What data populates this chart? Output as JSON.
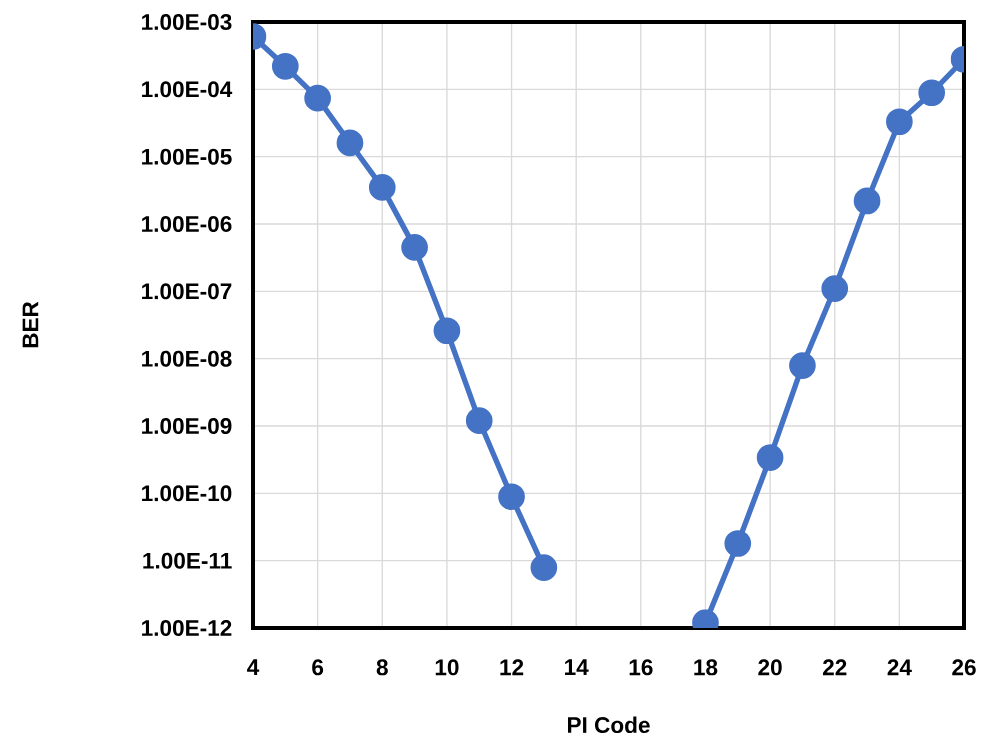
{
  "chart_data": {
    "type": "line",
    "xlabel": "PI Code",
    "ylabel": "BER",
    "x": [
      4,
      5,
      6,
      7,
      8,
      9,
      10,
      11,
      12,
      13,
      14,
      15,
      16,
      17,
      18,
      19,
      20,
      21,
      22,
      23,
      24,
      25,
      26
    ],
    "series": [
      {
        "color": "#4472c4",
        "values": [
          0.00061,
          0.00022,
          7.4e-05,
          1.6e-05,
          3.5e-06,
          4.5e-07,
          2.6e-08,
          1.2e-09,
          8.9e-11,
          7.9e-12,
          null,
          null,
          null,
          null,
          1.2e-12,
          1.8e-11,
          3.4e-10,
          7.9e-09,
          1.1e-07,
          2.2e-06,
          3.3e-05,
          8.9e-05,
          0.00028
        ]
      }
    ],
    "xlim": [
      4,
      26
    ],
    "ylim": [
      1e-12,
      0.001
    ],
    "xticks": [
      4,
      6,
      8,
      10,
      12,
      14,
      16,
      18,
      20,
      22,
      24,
      26
    ],
    "yticks": [
      {
        "value": 1e-12,
        "label": "1.00E-12"
      },
      {
        "value": 1e-11,
        "label": "1.00E-11"
      },
      {
        "value": 1e-10,
        "label": "1.00E-10"
      },
      {
        "value": 1e-09,
        "label": "1.00E-09"
      },
      {
        "value": 1e-08,
        "label": "1.00E-08"
      },
      {
        "value": 1e-07,
        "label": "1.00E-07"
      },
      {
        "value": 1e-06,
        "label": "1.00E-06"
      },
      {
        "value": 1e-05,
        "label": "1.00E-05"
      },
      {
        "value": 0.0001,
        "label": "1.00E-04"
      },
      {
        "value": 0.001,
        "label": "1.00E-03"
      }
    ],
    "log": "y",
    "grid": true,
    "marker": "circle",
    "line_style": "solid"
  }
}
